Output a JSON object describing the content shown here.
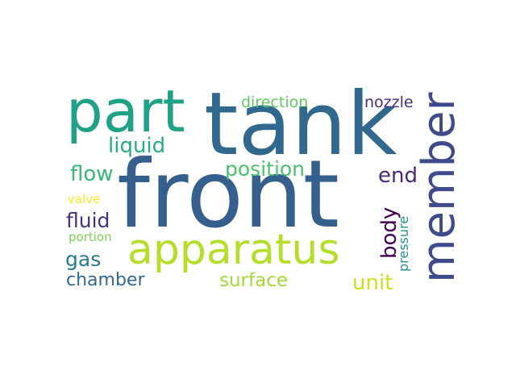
{
  "word_cloud": {
    "words": [
      {
        "key": "front",
        "text": "front",
        "color": "#355f8d"
      },
      {
        "key": "tank",
        "text": "tank",
        "color": "#31688e"
      },
      {
        "key": "part",
        "text": "part",
        "color": "#1fa187"
      },
      {
        "key": "member",
        "text": "member",
        "color": "#3e4a89"
      },
      {
        "key": "apparatus",
        "text": "apparatus",
        "color": "#b5de2b"
      },
      {
        "key": "liquid",
        "text": "liquid",
        "color": "#27ad81"
      },
      {
        "key": "position",
        "text": "position",
        "color": "#4ac16d"
      },
      {
        "key": "flow",
        "text": "flow",
        "color": "#35b779"
      },
      {
        "key": "end",
        "text": "end",
        "color": "#482878"
      },
      {
        "key": "fluid",
        "text": "fluid",
        "color": "#46327e"
      },
      {
        "key": "gas",
        "text": "gas",
        "color": "#2a788e"
      },
      {
        "key": "chamber",
        "text": "chamber",
        "color": "#31688e"
      },
      {
        "key": "surface",
        "text": "surface",
        "color": "#a0da39"
      },
      {
        "key": "unit",
        "text": "unit",
        "color": "#cae11f"
      },
      {
        "key": "direction",
        "text": "direction",
        "color": "#5ec962"
      },
      {
        "key": "nozzle",
        "text": "nozzle",
        "color": "#472d7b"
      },
      {
        "key": "valve",
        "text": "valve",
        "color": "#fde725"
      },
      {
        "key": "portion",
        "text": "portion",
        "color": "#7ad151"
      },
      {
        "key": "body",
        "text": "body",
        "color": "#440154"
      },
      {
        "key": "pressure",
        "text": "pressure",
        "color": "#21918c"
      }
    ]
  }
}
